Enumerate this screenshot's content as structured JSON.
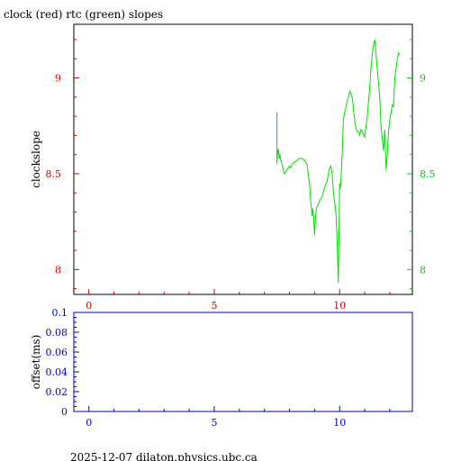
{
  "chart_data": [
    {
      "type": "line",
      "title": "clock (red) rtc (green) slopes",
      "ylabel": "clockslope",
      "xlim": [
        -0.6,
        12.9
      ],
      "ylim": [
        7.87,
        9.28
      ],
      "x_ticks": [
        0,
        5,
        10
      ],
      "x_tick_labels": [
        "0",
        "5",
        "10"
      ],
      "y_ticks": [
        8,
        8.5,
        9
      ],
      "y_tick_labels_left": [
        "8",
        "8.5",
        "9"
      ],
      "y_tick_labels_right": [
        "8",
        "8.5",
        "9"
      ],
      "colors": {
        "axes": "#000000",
        "left_ticks": "#cc0000",
        "right_ticks": "#00cc00",
        "x_ticks": "#cc0000"
      },
      "series": [
        {
          "color": "#00dd00",
          "x": [
            7.5,
            7.5,
            7.52,
            7.55,
            7.6,
            7.62,
            7.65,
            7.7,
            7.75,
            7.8,
            7.9,
            8.0,
            8.05,
            8.1,
            8.2,
            8.3,
            8.4,
            8.5,
            8.6,
            8.7,
            8.75,
            8.8,
            8.85,
            8.9,
            8.93,
            8.96,
            9.0,
            9.05,
            9.1,
            9.15,
            9.2,
            9.3,
            9.4,
            9.5,
            9.55,
            9.6,
            9.65,
            9.7,
            9.75,
            9.8,
            9.85,
            9.9,
            9.95,
            10.0,
            10.02,
            10.05,
            10.1,
            10.15,
            10.2,
            10.25,
            10.3,
            10.35,
            10.4,
            10.5,
            10.6,
            10.65,
            10.7,
            10.75,
            10.8,
            10.85,
            10.9,
            11.0,
            11.1,
            11.2,
            11.25,
            11.3,
            11.35,
            11.4,
            11.5,
            11.6,
            11.65,
            11.7,
            11.75,
            11.8,
            11.85,
            11.9,
            11.95,
            12.0,
            12.05,
            12.1,
            12.15,
            12.2,
            12.25,
            12.3,
            12.35,
            12.4
          ],
          "values": [
            8.82,
            8.55,
            8.6,
            8.63,
            8.58,
            8.6,
            8.57,
            8.55,
            8.52,
            8.5,
            8.52,
            8.54,
            8.53,
            8.55,
            8.56,
            8.57,
            8.58,
            8.58,
            8.57,
            8.55,
            8.5,
            8.45,
            8.35,
            8.28,
            8.32,
            8.27,
            8.18,
            8.3,
            8.33,
            8.34,
            8.36,
            8.38,
            8.43,
            8.46,
            8.5,
            8.53,
            8.54,
            8.5,
            8.4,
            8.35,
            8.3,
            8.15,
            7.93,
            8.45,
            8.42,
            8.46,
            8.6,
            8.78,
            8.82,
            8.85,
            8.88,
            8.9,
            8.93,
            8.9,
            8.78,
            8.74,
            8.72,
            8.72,
            8.7,
            8.73,
            8.72,
            8.69,
            8.8,
            8.95,
            9.05,
            9.12,
            9.17,
            9.2,
            9.05,
            8.9,
            8.75,
            8.68,
            8.62,
            8.73,
            8.52,
            8.6,
            8.72,
            8.78,
            8.82,
            8.86,
            8.85,
            9.0,
            9.05,
            9.1,
            9.13,
            9.12
          ]
        }
      ]
    },
    {
      "type": "line",
      "ylabel": "offset(ms)",
      "xlim": [
        -0.6,
        12.9
      ],
      "ylim": [
        0,
        0.1
      ],
      "x_ticks": [
        0,
        5,
        10
      ],
      "x_tick_labels": [
        "0",
        "5",
        "10"
      ],
      "y_ticks": [
        0,
        0.02,
        0.04,
        0.06,
        0.08,
        0.1
      ],
      "y_tick_labels": [
        "0",
        "0.02",
        "0.04",
        "0.06",
        "0.08",
        "0.1"
      ],
      "colors": {
        "axes": "#0000aa",
        "ticks": "#0000cc"
      },
      "series": []
    }
  ],
  "footer": "2025-12-07  dilaton.physics.ubc.ca"
}
